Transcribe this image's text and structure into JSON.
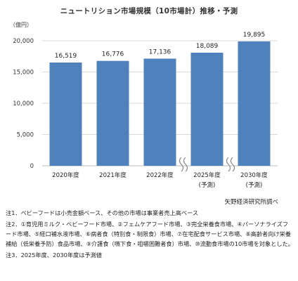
{
  "title": "ニュートリション市場規模（10市場計）推移・予測",
  "chart_data": {
    "type": "bar",
    "unit_label": "（億円）",
    "categories": [
      "2020年度",
      "2021年度",
      "2022年度",
      "2025年度",
      "2030年度"
    ],
    "sub_labels": [
      "",
      "",
      "",
      "(予測)",
      "(予測)"
    ],
    "values": [
      16519,
      16776,
      17136,
      18089,
      19895
    ],
    "value_labels": [
      "16,519",
      "16,776",
      "17,136",
      "18,089",
      "19,895"
    ],
    "ylim": [
      0,
      20000
    ],
    "yticks": [
      "0",
      "5,000",
      "10,000",
      "15,000",
      "20,000"
    ],
    "ytick_values": [
      0,
      5000,
      10000,
      15000,
      20000
    ],
    "grid": true,
    "axis_breaks_after_index": [
      2,
      3
    ],
    "bar_color": "#4f81bd"
  },
  "source": "矢野経済研究所調べ",
  "notes": [
    "注1．ベビーフードは小売金額ベース、その他の市場は事業者売上高ベース",
    "注2．①育児用ミルク・ベビーフード市場、②フェムケアフード市場、③完全栄養食市場、④パーソナライズフード市場、⑤経口補水液市場、⑥病者食（特別食・制限食）市場、⑦在宅配食サービス市場、⑧高齢者向け栄養補給（低栄養予防）食品市場、⑨介護食（嚥下食・咀嚼困難者食）市場、⑩流動食市場の10市場を対象とした。",
    "注3．2025年度、2030年度は予測値"
  ]
}
